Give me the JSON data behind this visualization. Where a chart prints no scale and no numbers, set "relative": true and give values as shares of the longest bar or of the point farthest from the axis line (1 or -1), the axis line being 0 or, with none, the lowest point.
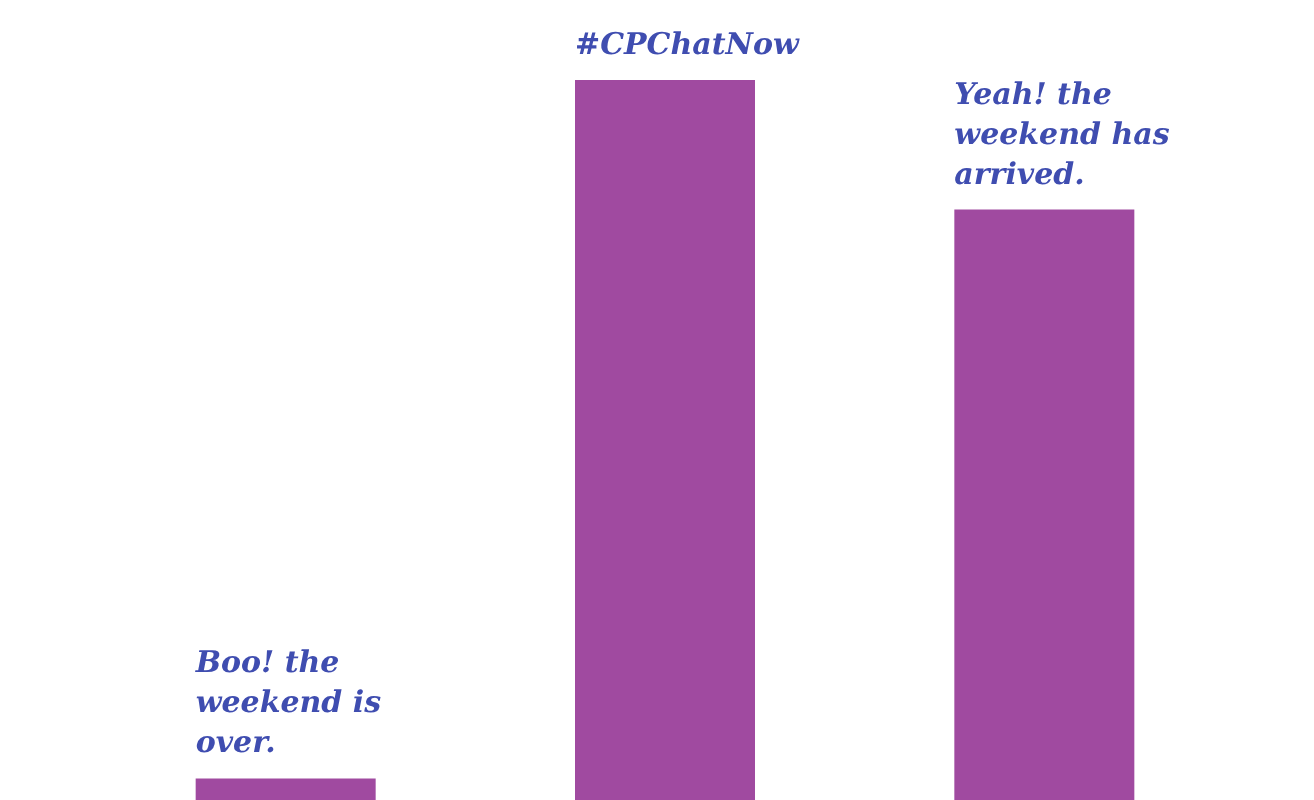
{
  "chart_data": {
    "type": "bar",
    "relative": true,
    "categories": [
      "Boo! the weekend is over.",
      "#CPChatNow",
      "Yeah! the weekend has arrived."
    ],
    "values": [
      0.03,
      1,
      0.82
    ],
    "color": "#a04aa0"
  }
}
